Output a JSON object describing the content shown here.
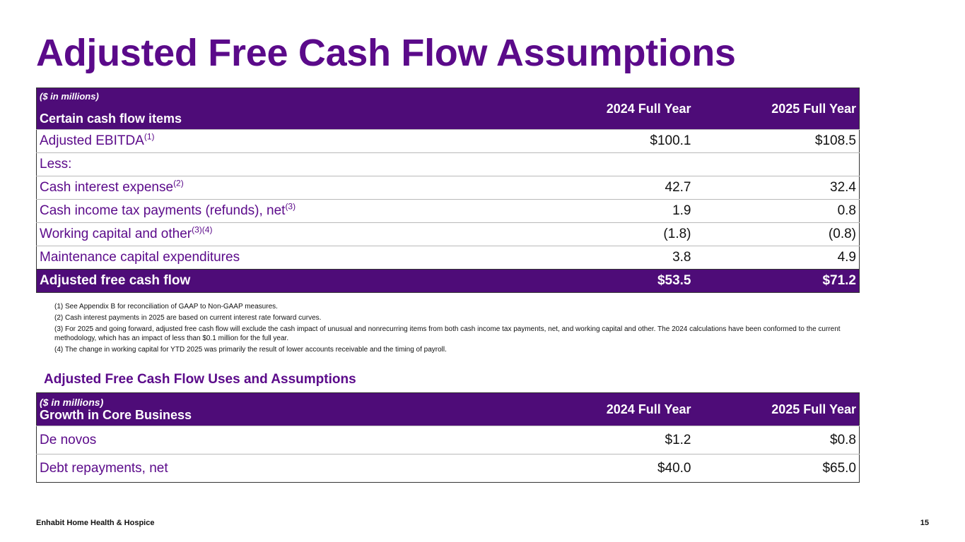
{
  "title": "Adjusted Free Cash Flow Assumptions",
  "colors": {
    "brand_purple": "#5b0a8a",
    "header_bg": "#4e0c78"
  },
  "table1": {
    "units": "($ in millions)",
    "group_label": "Certain cash flow items",
    "col_2024": "2024 Full Year",
    "col_2025": "2025 Full Year",
    "rows": [
      {
        "label": "Adjusted EBITDA",
        "sup": "(1)",
        "v2024": "$100.1",
        "v2025": "$108.5"
      },
      {
        "label": "Less:",
        "sup": "",
        "v2024": "",
        "v2025": ""
      },
      {
        "label": "Cash interest expense",
        "sup": "(2)",
        "v2024": "42.7",
        "v2025": "32.4"
      },
      {
        "label": "Cash income tax payments (refunds), net",
        "sup": "(3)",
        "v2024": "1.9",
        "v2025": "0.8"
      },
      {
        "label": "Working capital and other",
        "sup": "(3)(4)",
        "v2024": "(1.8)",
        "v2025": "(0.8)"
      },
      {
        "label": "Maintenance capital expenditures",
        "sup": "",
        "v2024": "3.8",
        "v2025": "4.9"
      }
    ],
    "total": {
      "label": "Adjusted free cash flow",
      "v2024": "$53.5",
      "v2025": "$71.2"
    }
  },
  "footnotes": [
    "(1) See Appendix B for reconciliation of GAAP to Non-GAAP measures.",
    "(2) Cash interest payments in 2025 are based on current interest rate forward curves.",
    "(3) For 2025 and going forward, adjusted free cash flow will exclude the cash impact of unusual and nonrecurring items from both cash income tax payments, net, and working capital and other. The 2024 calculations have been conformed to the current methodology, which has an impact of less than $0.1 million for the full year.",
    "(4) The change in working capital for YTD 2025 was primarily the result of lower accounts receivable and the timing of payroll."
  ],
  "subheading": "Adjusted Free Cash Flow Uses and Assumptions",
  "table2": {
    "units": "($ in millions)",
    "group_label": "Growth in Core Business",
    "col_2024": "2024 Full Year",
    "col_2025": "2025 Full Year",
    "rows": [
      {
        "label": "De novos",
        "v2024": "$1.2",
        "v2025": "$0.8"
      },
      {
        "label": "Debt repayments, net",
        "v2024": "$40.0",
        "v2025": "$65.0"
      }
    ]
  },
  "footer": {
    "company": "Enhabit Home Health & Hospice",
    "page_number": "15"
  }
}
